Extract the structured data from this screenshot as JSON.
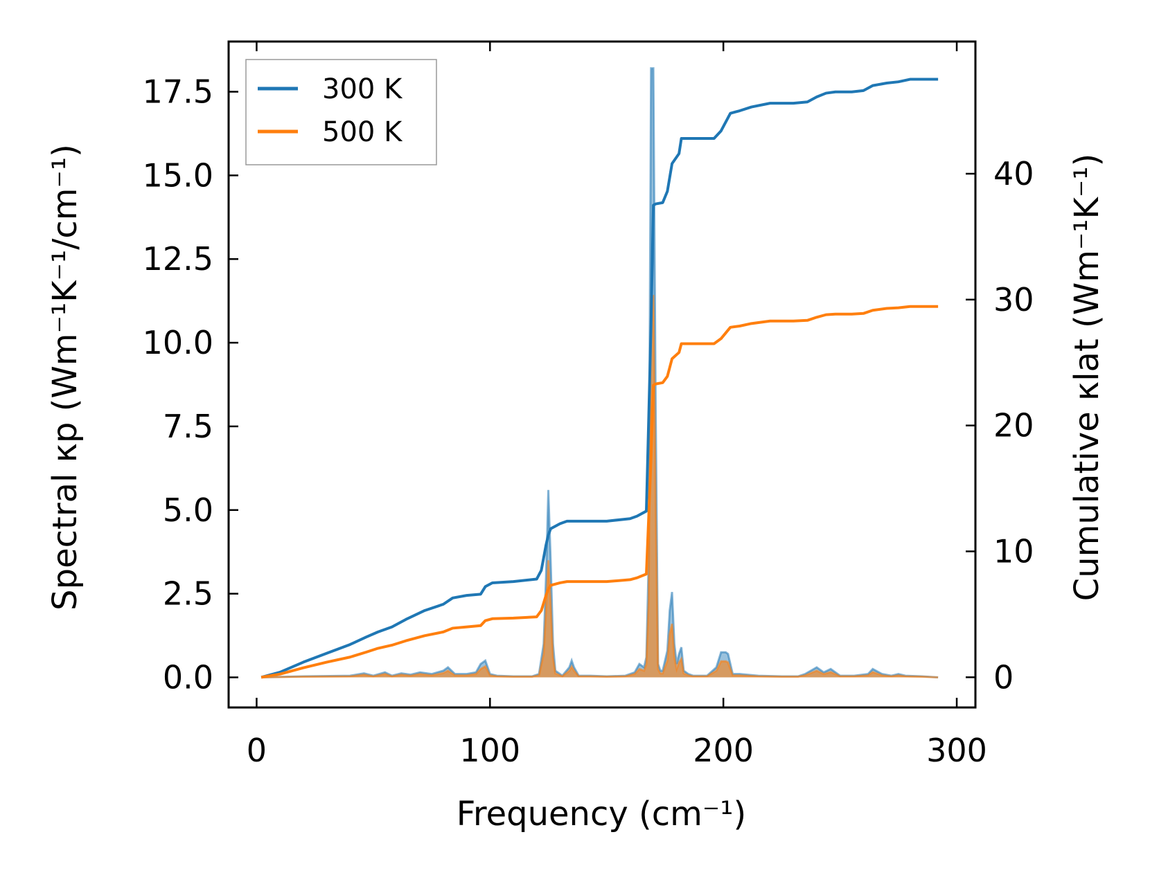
{
  "chart_data": {
    "type": "line",
    "xlabel": "Frequency (cm⁻¹)",
    "ylabel_left": "Spectral κp (Wm⁻¹K⁻¹/cm⁻¹)",
    "ylabel_right": "Cumulative κlat (Wm⁻¹K⁻¹)",
    "xlim": [
      -12,
      308
    ],
    "ylim_left": [
      -0.9,
      19.0
    ],
    "ylim_right": [
      -2.4,
      50.5
    ],
    "xticks": [
      0,
      100,
      200,
      300
    ],
    "xtick_labels": [
      "0",
      "100",
      "200",
      "300"
    ],
    "yticks_left": [
      0,
      2.5,
      5,
      7.5,
      10,
      12.5,
      15,
      17.5
    ],
    "ytick_labels_left": [
      "0.0",
      "2.5",
      "5.0",
      "7.5",
      "10.0",
      "12.5",
      "15.0",
      "17.5"
    ],
    "yticks_right": [
      0,
      10,
      20,
      30,
      40
    ],
    "ytick_labels_right": [
      "0",
      "10",
      "20",
      "30",
      "40"
    ],
    "grid": false,
    "legend_position": "top-left",
    "colors": {
      "300 K": "#1f77b4",
      "500 K": "#ff7f0e"
    },
    "cumulative_series": [
      {
        "name": "300 K",
        "x": [
          2,
          10,
          20,
          30,
          40,
          47,
          52,
          58,
          64,
          72,
          80,
          84,
          90,
          96,
          98,
          101,
          110,
          120,
          122,
          124,
          125,
          126,
          130,
          133,
          137,
          150,
          160,
          163,
          167,
          168,
          169,
          170,
          171,
          174,
          176,
          178,
          181,
          182,
          188,
          196,
          199,
          203,
          205,
          207,
          212,
          220,
          230,
          236,
          240,
          244,
          248,
          255,
          260,
          264,
          270,
          275,
          280,
          292
        ],
        "y": [
          0.0,
          0.4,
          1.2,
          1.9,
          2.6,
          3.2,
          3.6,
          4.0,
          4.6,
          5.3,
          5.8,
          6.3,
          6.5,
          6.6,
          7.2,
          7.5,
          7.6,
          7.8,
          8.5,
          10.5,
          11.3,
          11.8,
          12.2,
          12.4,
          12.4,
          12.4,
          12.6,
          12.8,
          13.2,
          20.5,
          28.0,
          37.5,
          37.6,
          37.7,
          38.6,
          40.8,
          41.6,
          42.8,
          42.8,
          42.8,
          43.4,
          44.8,
          44.9,
          45.0,
          45.3,
          45.6,
          45.6,
          45.7,
          46.1,
          46.4,
          46.5,
          46.5,
          46.6,
          47.0,
          47.2,
          47.3,
          47.5,
          47.5
        ]
      },
      {
        "name": "500 K",
        "x": [
          2,
          10,
          20,
          30,
          40,
          47,
          52,
          58,
          64,
          72,
          80,
          84,
          90,
          96,
          98,
          101,
          110,
          120,
          122,
          124,
          125,
          126,
          130,
          133,
          137,
          150,
          160,
          163,
          167,
          168,
          169,
          170,
          171,
          174,
          176,
          178,
          181,
          182,
          188,
          196,
          199,
          203,
          205,
          207,
          212,
          220,
          230,
          236,
          240,
          244,
          248,
          255,
          260,
          264,
          270,
          275,
          280,
          292
        ],
        "y": [
          0.0,
          0.25,
          0.75,
          1.2,
          1.6,
          2.0,
          2.3,
          2.55,
          2.9,
          3.3,
          3.6,
          3.9,
          4.0,
          4.1,
          4.5,
          4.65,
          4.7,
          4.8,
          5.3,
          6.5,
          7.0,
          7.3,
          7.5,
          7.6,
          7.6,
          7.6,
          7.75,
          7.9,
          8.2,
          12.7,
          17.4,
          23.2,
          23.3,
          23.4,
          23.9,
          25.3,
          25.8,
          26.5,
          26.5,
          26.5,
          26.9,
          27.8,
          27.85,
          27.9,
          28.1,
          28.3,
          28.3,
          28.35,
          28.6,
          28.8,
          28.85,
          28.85,
          28.9,
          29.15,
          29.3,
          29.35,
          29.45,
          29.45
        ]
      }
    ],
    "spectral_series": [
      {
        "name": "300 K",
        "x": [
          2,
          20,
          40,
          46,
          50,
          55,
          58,
          62,
          66,
          70,
          75,
          80,
          82,
          85,
          90,
          94,
          96,
          98,
          100,
          103,
          110,
          118,
          121,
          123,
          124,
          125,
          126,
          127,
          128,
          131,
          134,
          135,
          136,
          138,
          143,
          150,
          158,
          162,
          164,
          166,
          167,
          168,
          169,
          170,
          171,
          172,
          173,
          174,
          176,
          177,
          178,
          179,
          180,
          181,
          182,
          183,
          185,
          187,
          193,
          197,
          199,
          201,
          202,
          204,
          207,
          215,
          225,
          232,
          235,
          240,
          243,
          246,
          250,
          256,
          262,
          264,
          268,
          272,
          275,
          278,
          285,
          292
        ],
        "y": [
          0.0,
          0.03,
          0.05,
          0.12,
          0.05,
          0.15,
          0.05,
          0.12,
          0.08,
          0.15,
          0.1,
          0.2,
          0.3,
          0.1,
          0.1,
          0.15,
          0.4,
          0.5,
          0.1,
          0.05,
          0.03,
          0.03,
          0.1,
          1.0,
          3.0,
          5.6,
          3.5,
          1.0,
          0.2,
          0.05,
          0.3,
          0.5,
          0.3,
          0.05,
          0.05,
          0.03,
          0.05,
          0.15,
          0.4,
          0.3,
          0.6,
          3.5,
          18.2,
          18.2,
          8.0,
          0.4,
          0.2,
          0.2,
          0.8,
          2.0,
          2.55,
          1.0,
          0.4,
          0.7,
          0.9,
          0.2,
          0.1,
          0.05,
          0.05,
          0.3,
          0.75,
          0.75,
          0.7,
          0.1,
          0.1,
          0.05,
          0.03,
          0.03,
          0.1,
          0.3,
          0.15,
          0.25,
          0.05,
          0.05,
          0.1,
          0.25,
          0.1,
          0.05,
          0.1,
          0.05,
          0.03,
          0.0
        ]
      },
      {
        "name": "500 K",
        "x": [
          2,
          20,
          40,
          46,
          50,
          55,
          58,
          62,
          66,
          70,
          75,
          80,
          82,
          85,
          90,
          94,
          96,
          98,
          100,
          103,
          110,
          118,
          121,
          123,
          124,
          125,
          126,
          127,
          128,
          131,
          134,
          135,
          136,
          138,
          143,
          150,
          158,
          162,
          164,
          166,
          167,
          168,
          169,
          170,
          171,
          172,
          173,
          174,
          176,
          177,
          178,
          179,
          180,
          181,
          182,
          183,
          185,
          187,
          193,
          197,
          199,
          201,
          202,
          204,
          207,
          215,
          225,
          232,
          235,
          240,
          243,
          246,
          250,
          256,
          262,
          264,
          268,
          272,
          275,
          278,
          285,
          292
        ],
        "y": [
          0.0,
          0.02,
          0.03,
          0.08,
          0.03,
          0.1,
          0.03,
          0.08,
          0.05,
          0.1,
          0.06,
          0.13,
          0.2,
          0.06,
          0.06,
          0.1,
          0.25,
          0.33,
          0.06,
          0.03,
          0.02,
          0.02,
          0.06,
          0.7,
          2.0,
          3.5,
          2.2,
          0.6,
          0.12,
          0.03,
          0.2,
          0.32,
          0.2,
          0.03,
          0.03,
          0.02,
          0.03,
          0.1,
          0.25,
          0.2,
          0.4,
          2.3,
          11.4,
          11.4,
          5.0,
          0.25,
          0.12,
          0.12,
          0.5,
          1.3,
          1.6,
          0.6,
          0.25,
          0.45,
          0.55,
          0.12,
          0.06,
          0.03,
          0.03,
          0.2,
          0.48,
          0.48,
          0.45,
          0.06,
          0.06,
          0.03,
          0.02,
          0.02,
          0.06,
          0.2,
          0.1,
          0.16,
          0.03,
          0.03,
          0.06,
          0.16,
          0.06,
          0.03,
          0.06,
          0.03,
          0.02,
          0.0
        ]
      }
    ],
    "legend": [
      "300 K",
      "500 K"
    ]
  }
}
